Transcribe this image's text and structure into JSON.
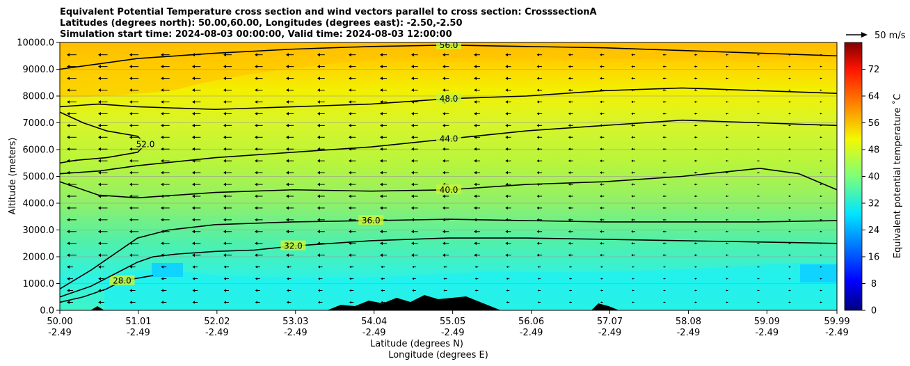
{
  "chart_data": {
    "type": "heatmap",
    "title_lines": [
      "Equivalent Potential Temperature cross section and wind vectors parallel to cross section: CrosssectionA",
      "Latitudes (degrees north): 50.00,60.00, Longitudes (degrees east): -2.50,-2.50",
      "Simulation start time: 2024-08-03 00:00:00, Valid time: 2024-08-03 12:00:00"
    ],
    "ylabel": "Altitude (meters)",
    "xlabel_lines": [
      "Latitude (degrees N)",
      "Longitude (degrees E)"
    ],
    "ylim": [
      0,
      10000
    ],
    "xlim": [
      50.0,
      59.99
    ],
    "y_ticks": [
      {
        "value": 0,
        "label": "0.0"
      },
      {
        "value": 1000,
        "label": "1000.0"
      },
      {
        "value": 2000,
        "label": "2000.0"
      },
      {
        "value": 3000,
        "label": "3000.0"
      },
      {
        "value": 4000,
        "label": "4000.0"
      },
      {
        "value": 5000,
        "label": "5000.0"
      },
      {
        "value": 6000,
        "label": "6000.0"
      },
      {
        "value": 7000,
        "label": "7000.0"
      },
      {
        "value": 8000,
        "label": "8000.0"
      },
      {
        "value": 9000,
        "label": "9000.0"
      },
      {
        "value": 10000,
        "label": "10000.0"
      }
    ],
    "x_ticks": [
      {
        "value": 50.0,
        "lat": "50.00",
        "lon": "-2.49"
      },
      {
        "value": 51.01,
        "lat": "51.01",
        "lon": "-2.49"
      },
      {
        "value": 52.02,
        "lat": "52.02",
        "lon": "-2.49"
      },
      {
        "value": 53.03,
        "lat": "53.03",
        "lon": "-2.49"
      },
      {
        "value": 54.04,
        "lat": "54.04",
        "lon": "-2.49"
      },
      {
        "value": 55.05,
        "lat": "55.05",
        "lon": "-2.49"
      },
      {
        "value": 56.06,
        "lat": "56.06",
        "lon": "-2.49"
      },
      {
        "value": 57.07,
        "lat": "57.07",
        "lon": "-2.49"
      },
      {
        "value": 58.08,
        "lat": "58.08",
        "lon": "-2.49"
      },
      {
        "value": 59.09,
        "lat": "59.09",
        "lon": "-2.49"
      },
      {
        "value": 59.99,
        "lat": "59.99",
        "lon": "-2.49"
      }
    ],
    "colorbar": {
      "label": "Equivalent potential temperature $^\\circ$C",
      "label_display": "Equivalent potential temperature ˚C",
      "range": [
        0,
        80
      ],
      "ticks": [
        "0",
        "8",
        "16",
        "24",
        "32",
        "40",
        "48",
        "56",
        "64",
        "72"
      ]
    },
    "quiver_key": {
      "label": "50 m/s"
    },
    "contours": [
      {
        "value": 28,
        "label": "28.0",
        "points": [
          [
            50.0,
            300
          ],
          [
            50.3,
            500
          ],
          [
            50.6,
            800
          ],
          [
            50.8,
            1100
          ],
          [
            51.0,
            1200
          ],
          [
            51.2,
            1300
          ]
        ]
      },
      {
        "value": 32,
        "label": "32.0",
        "points": [
          [
            50.0,
            500
          ],
          [
            50.4,
            900
          ],
          [
            50.8,
            1500
          ],
          [
            51.0,
            1800
          ],
          [
            51.2,
            2000
          ],
          [
            51.5,
            2100
          ],
          [
            52.0,
            2200
          ],
          [
            52.5,
            2250
          ],
          [
            53.0,
            2400
          ],
          [
            54.0,
            2600
          ],
          [
            55.0,
            2700
          ],
          [
            56.0,
            2700
          ],
          [
            57.0,
            2650
          ],
          [
            58.0,
            2600
          ],
          [
            59.0,
            2550
          ],
          [
            59.99,
            2500
          ]
        ]
      },
      {
        "value": 36,
        "label": "36.0",
        "points": [
          [
            50.0,
            800
          ],
          [
            50.4,
            1500
          ],
          [
            50.8,
            2300
          ],
          [
            51.0,
            2700
          ],
          [
            51.4,
            3000
          ],
          [
            52.0,
            3200
          ],
          [
            53.0,
            3300
          ],
          [
            54.0,
            3350
          ],
          [
            55.0,
            3400
          ],
          [
            56.0,
            3350
          ],
          [
            57.0,
            3300
          ],
          [
            58.0,
            3300
          ],
          [
            59.0,
            3300
          ],
          [
            59.99,
            3350
          ]
        ]
      },
      {
        "value": 40,
        "label": "40.0",
        "points": [
          [
            50.0,
            4800
          ],
          [
            50.5,
            4300
          ],
          [
            51.0,
            4200
          ],
          [
            52.0,
            4400
          ],
          [
            53.0,
            4500
          ],
          [
            54.0,
            4450
          ],
          [
            55.0,
            4500
          ],
          [
            56.0,
            4700
          ],
          [
            57.0,
            4800
          ],
          [
            58.0,
            5000
          ],
          [
            59.0,
            5300
          ],
          [
            59.5,
            5100
          ],
          [
            59.99,
            4500
          ]
        ]
      },
      {
        "value": 44,
        "label": "44.0",
        "points": [
          [
            50.0,
            5100
          ],
          [
            50.5,
            5200
          ],
          [
            51.0,
            5400
          ],
          [
            52.0,
            5700
          ],
          [
            53.0,
            5900
          ],
          [
            54.0,
            6100
          ],
          [
            55.0,
            6400
          ],
          [
            56.0,
            6700
          ],
          [
            57.0,
            6900
          ],
          [
            58.0,
            7100
          ],
          [
            59.0,
            7000
          ],
          [
            59.99,
            6900
          ]
        ]
      },
      {
        "value": 48,
        "label": "48.0",
        "points": [
          [
            50.0,
            7600
          ],
          [
            50.5,
            7700
          ],
          [
            51.0,
            7600
          ],
          [
            52.0,
            7500
          ],
          [
            53.0,
            7600
          ],
          [
            54.0,
            7700
          ],
          [
            55.0,
            7900
          ],
          [
            56.0,
            8000
          ],
          [
            57.0,
            8200
          ],
          [
            58.0,
            8300
          ],
          [
            59.0,
            8200
          ],
          [
            59.99,
            8100
          ]
        ]
      },
      {
        "value": 52,
        "label": "52.0",
        "points": [
          [
            50.0,
            7400
          ],
          [
            50.3,
            7000
          ],
          [
            50.6,
            6700
          ],
          [
            51.0,
            6500
          ],
          [
            51.1,
            6200
          ],
          [
            51.0,
            5900
          ],
          [
            50.6,
            5700
          ],
          [
            50.2,
            5600
          ],
          [
            50.0,
            5500
          ]
        ]
      },
      {
        "value": 56,
        "label": "56.0",
        "points": [
          [
            50.0,
            9000
          ],
          [
            50.5,
            9200
          ],
          [
            51.0,
            9400
          ],
          [
            52.0,
            9600
          ],
          [
            53.0,
            9750
          ],
          [
            54.0,
            9850
          ],
          [
            55.0,
            9900
          ],
          [
            56.0,
            9850
          ],
          [
            57.0,
            9800
          ],
          [
            58.0,
            9700
          ],
          [
            59.0,
            9600
          ],
          [
            59.99,
            9500
          ]
        ]
      }
    ]
  }
}
